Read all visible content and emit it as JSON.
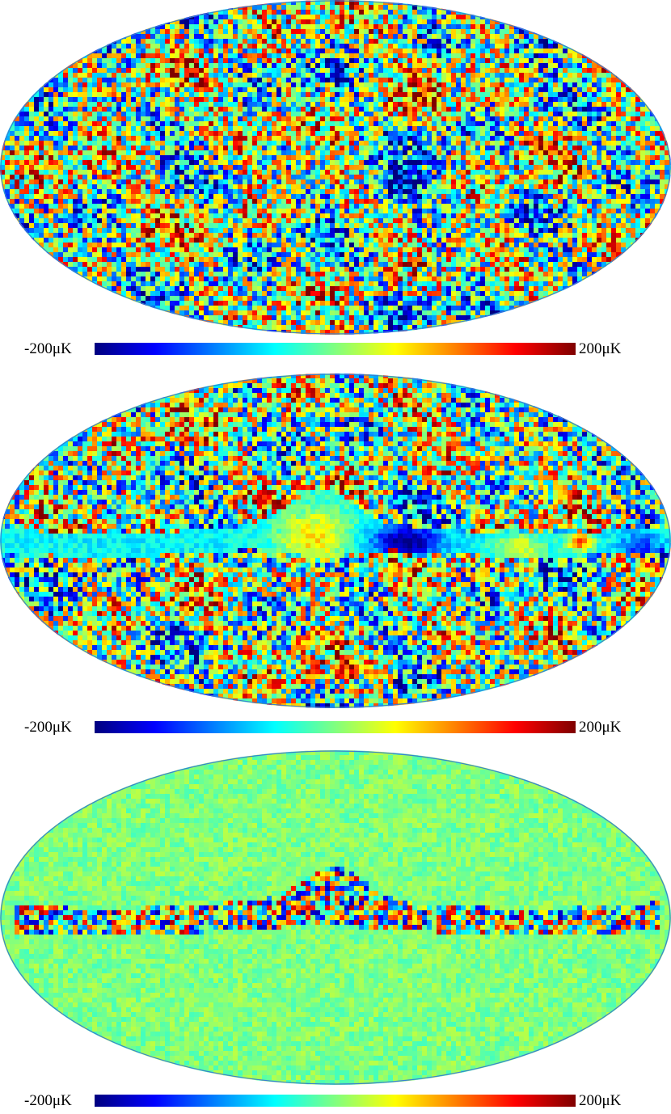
{
  "colorbar": {
    "min_label": "-200μK",
    "max_label": "200μK",
    "stops": [
      "#00007f",
      "#0000ff",
      "#0080ff",
      "#00ffff",
      "#80ff80",
      "#ffff00",
      "#ff8000",
      "#ff0000",
      "#7f0000"
    ]
  },
  "panels": [
    {
      "colorbar_min": "-200μK",
      "colorbar_max": "200μK",
      "noise_level": 0.95,
      "galactic_band": "none"
    },
    {
      "colorbar_min": "-200μK",
      "colorbar_max": "200μK",
      "noise_level": 0.95,
      "galactic_band": "foreground emission"
    },
    {
      "colorbar_min": "-200μK",
      "colorbar_max": "200μK",
      "noise_level": 0.12,
      "galactic_band": "residual"
    }
  ],
  "colors": {
    "map_background": "#7de0a0",
    "page_background": "#ffffff"
  }
}
